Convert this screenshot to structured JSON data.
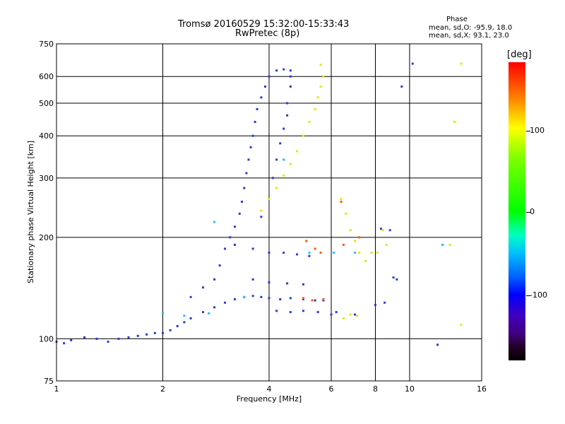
{
  "header": {
    "title_line1": "Tromsø 20160529 15:32:00-15:33:43",
    "title_line2": "RwPretec (8p)",
    "phase_title": "Phase",
    "phase_o": "mean, sd,O:  -95.9, 18.0",
    "phase_x": "mean, sd,X:  93.1, 23.0"
  },
  "colorbar": {
    "unit": "[deg]",
    "ticks": [
      "100",
      "0",
      "-100"
    ],
    "stops": [
      "#ff0000",
      "#ffff00",
      "#00ff00",
      "#0000ff",
      "#000000"
    ]
  },
  "chart_data": {
    "type": "scatter",
    "xlabel": "Frequency [MHz]",
    "ylabel": "Stationary phase Virtual Height [km]",
    "x_scale": "log",
    "y_scale": "log",
    "xlim": [
      1,
      16
    ],
    "ylim": [
      75,
      750
    ],
    "x_ticks": [
      1,
      2,
      4,
      6,
      8,
      10,
      16
    ],
    "y_ticks": [
      75,
      100,
      200,
      300,
      400,
      500,
      600,
      750
    ],
    "grid": true,
    "series": [
      {
        "color": "#2a3ad8",
        "points": [
          [
            1.0,
            98
          ],
          [
            1.05,
            97
          ],
          [
            1.1,
            99
          ],
          [
            1.2,
            101
          ],
          [
            1.3,
            100
          ],
          [
            1.4,
            98
          ],
          [
            1.5,
            100
          ],
          [
            1.6,
            101
          ],
          [
            1.7,
            102
          ],
          [
            1.8,
            103
          ],
          [
            1.9,
            104
          ],
          [
            2.0,
            104
          ],
          [
            2.1,
            106
          ],
          [
            2.2,
            109
          ],
          [
            2.3,
            112
          ],
          [
            2.4,
            115
          ],
          [
            2.6,
            120
          ],
          [
            2.8,
            124
          ],
          [
            3.0,
            128
          ],
          [
            3.2,
            131
          ],
          [
            3.4,
            133
          ],
          [
            3.6,
            134
          ],
          [
            3.8,
            133
          ],
          [
            4.0,
            132
          ],
          [
            4.3,
            131
          ],
          [
            4.6,
            132
          ],
          [
            5.0,
            131
          ],
          [
            5.4,
            130
          ],
          [
            5.7,
            130
          ],
          [
            2.4,
            133
          ],
          [
            2.6,
            142
          ],
          [
            2.8,
            150
          ],
          [
            2.9,
            165
          ],
          [
            3.0,
            185
          ],
          [
            3.1,
            200
          ],
          [
            3.2,
            215
          ],
          [
            3.3,
            235
          ],
          [
            3.35,
            255
          ],
          [
            3.4,
            280
          ],
          [
            3.45,
            310
          ],
          [
            3.5,
            340
          ],
          [
            3.55,
            370
          ],
          [
            3.6,
            400
          ],
          [
            3.65,
            440
          ],
          [
            3.7,
            480
          ],
          [
            3.8,
            520
          ],
          [
            3.9,
            560
          ],
          [
            4.0,
            600
          ],
          [
            4.2,
            625
          ],
          [
            4.4,
            630
          ],
          [
            4.6,
            625
          ],
          [
            3.8,
            230
          ],
          [
            4.0,
            260
          ],
          [
            4.1,
            300
          ],
          [
            4.2,
            340
          ],
          [
            4.3,
            380
          ],
          [
            4.4,
            420
          ],
          [
            4.5,
            460
          ],
          [
            4.5,
            500
          ],
          [
            4.6,
            560
          ],
          [
            4.6,
            600
          ],
          [
            3.2,
            190
          ],
          [
            3.6,
            185
          ],
          [
            4.0,
            180
          ],
          [
            4.4,
            180
          ],
          [
            4.8,
            178
          ],
          [
            5.2,
            176
          ],
          [
            3.6,
            150
          ],
          [
            4.0,
            147
          ],
          [
            4.5,
            146
          ],
          [
            5.0,
            145
          ],
          [
            4.2,
            121
          ],
          [
            4.6,
            120
          ],
          [
            5.0,
            121
          ],
          [
            5.5,
            120
          ],
          [
            6.0,
            118
          ],
          [
            6.2,
            120
          ],
          [
            7.0,
            118
          ],
          [
            8.0,
            126
          ],
          [
            8.5,
            128
          ],
          [
            9.0,
            152
          ],
          [
            9.2,
            150
          ],
          [
            8.3,
            212
          ],
          [
            8.8,
            210
          ],
          [
            12.0,
            96
          ],
          [
            9.5,
            560
          ],
          [
            10.2,
            655
          ]
        ]
      },
      {
        "color": "#e6e600",
        "points": [
          [
            3.8,
            240
          ],
          [
            4.0,
            260
          ],
          [
            4.2,
            280
          ],
          [
            4.4,
            305
          ],
          [
            4.6,
            330
          ],
          [
            4.8,
            360
          ],
          [
            5.0,
            400
          ],
          [
            5.2,
            440
          ],
          [
            5.4,
            480
          ],
          [
            5.5,
            520
          ],
          [
            5.6,
            560
          ],
          [
            5.7,
            600
          ],
          [
            5.6,
            650
          ],
          [
            6.4,
            260
          ],
          [
            6.6,
            235
          ],
          [
            6.8,
            210
          ],
          [
            7.0,
            195
          ],
          [
            7.2,
            180
          ],
          [
            7.5,
            170
          ],
          [
            7.8,
            180
          ],
          [
            8.1,
            180
          ],
          [
            8.4,
            210
          ],
          [
            8.6,
            190
          ],
          [
            6.5,
            115
          ],
          [
            6.8,
            118
          ],
          [
            7.1,
            117
          ],
          [
            14.0,
            110
          ],
          [
            14.0,
            655
          ],
          [
            13.4,
            440
          ],
          [
            13.0,
            190
          ]
        ]
      },
      {
        "color": "#ff5a00",
        "points": [
          [
            5.1,
            195
          ],
          [
            5.4,
            185
          ],
          [
            5.6,
            180
          ],
          [
            5.0,
            132
          ],
          [
            5.3,
            130
          ],
          [
            5.7,
            131
          ],
          [
            6.5,
            190
          ],
          [
            7.2,
            200
          ],
          [
            6.4,
            255
          ]
        ]
      },
      {
        "color": "#20c0ff",
        "points": [
          [
            2.0,
            119
          ],
          [
            2.3,
            117
          ],
          [
            2.7,
            119
          ],
          [
            2.8,
            222
          ],
          [
            3.4,
            133
          ],
          [
            4.4,
            340
          ],
          [
            5.2,
            180
          ],
          [
            6.1,
            180
          ],
          [
            7.0,
            180
          ],
          [
            12.4,
            190
          ]
        ]
      }
    ]
  }
}
